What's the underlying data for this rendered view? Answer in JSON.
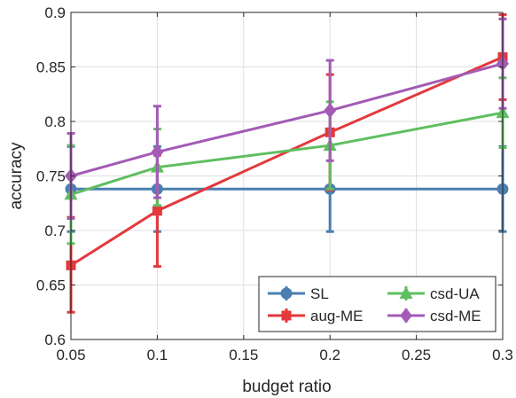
{
  "chart_data": {
    "type": "line",
    "xlabel": "budget ratio",
    "ylabel": "accuracy",
    "xlim": [
      0.05,
      0.3
    ],
    "ylim": [
      0.6,
      0.9
    ],
    "xticks": [
      0.05,
      0.1,
      0.15,
      0.2,
      0.25,
      0.3
    ],
    "xtick_labels": [
      "0.05",
      "0.1",
      "0.15",
      "0.2",
      "0.25",
      "0.3"
    ],
    "yticks": [
      0.6,
      0.65,
      0.7,
      0.75,
      0.8,
      0.85,
      0.9
    ],
    "ytick_labels": [
      "0.6",
      "0.65",
      "0.7",
      "0.75",
      "0.8",
      "0.85",
      "0.9"
    ],
    "grid": true,
    "legend_position": "bottom-right",
    "series": [
      {
        "name": "SL",
        "color": "#4a7fb0",
        "marker": "circle",
        "x": [
          0.05,
          0.1,
          0.2,
          0.3
        ],
        "y": [
          0.738,
          0.738,
          0.738,
          0.738
        ],
        "err_low": [
          0.699,
          0.699,
          0.699,
          0.699
        ],
        "err_high": [
          0.777,
          0.777,
          0.777,
          0.777
        ]
      },
      {
        "name": "aug-ME",
        "color": "#e3393d",
        "marker": "square",
        "x": [
          0.05,
          0.1,
          0.2,
          0.3
        ],
        "y": [
          0.668,
          0.718,
          0.79,
          0.859
        ],
        "err_low": [
          0.625,
          0.667,
          0.737,
          0.82
        ],
        "err_high": [
          0.712,
          0.769,
          0.843,
          0.898
        ]
      },
      {
        "name": "csd-UA",
        "color": "#5fbf5f",
        "marker": "triangle",
        "x": [
          0.05,
          0.1,
          0.2,
          0.3
        ],
        "y": [
          0.733,
          0.758,
          0.778,
          0.808
        ],
        "err_low": [
          0.688,
          0.723,
          0.738,
          0.776
        ],
        "err_high": [
          0.778,
          0.793,
          0.818,
          0.84
        ]
      },
      {
        "name": "csd-ME",
        "color": "#a35bb5",
        "marker": "diamond",
        "x": [
          0.05,
          0.1,
          0.2,
          0.3
        ],
        "y": [
          0.75,
          0.772,
          0.81,
          0.853
        ],
        "err_low": [
          0.711,
          0.73,
          0.764,
          0.812
        ],
        "err_high": [
          0.789,
          0.814,
          0.856,
          0.894
        ]
      }
    ]
  }
}
